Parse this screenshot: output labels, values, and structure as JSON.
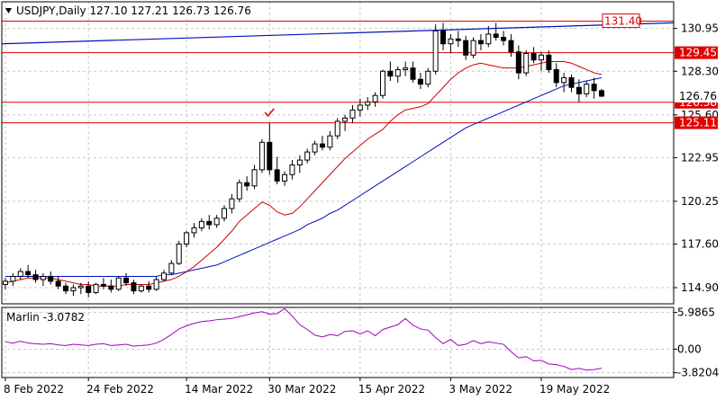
{
  "header": {
    "symbol_line": "USDJPY,Daily  127.10 127.21 126.73 126.76",
    "menu_icon": "triangle-down-icon"
  },
  "chart_data": [
    {
      "type": "candlestick",
      "title": "USDJPY,Daily",
      "ohlc_last": {
        "open": 127.1,
        "high": 127.21,
        "low": 126.73,
        "close": 126.76
      },
      "x_ticks": [
        "8 Feb 2022",
        "24 Feb 2022",
        "14 Mar 2022",
        "30 Mar 2022",
        "15 Apr 2022",
        "3 May 2022",
        "19 May 2022"
      ],
      "y_ticks": [
        130.95,
        128.3,
        125.6,
        122.95,
        120.25,
        117.6,
        114.9
      ],
      "ylim": [
        113.9,
        132.6
      ],
      "grid": true,
      "horizontal_levels": [
        {
          "value": 131.4,
          "label": "131.40",
          "color": "#e00000",
          "label_style": "outlined"
        },
        {
          "value": 129.45,
          "label": "129.45",
          "color": "#e00000",
          "label_style": "filled"
        },
        {
          "value": 126.38,
          "label": "126.38",
          "color": "#e00000",
          "label_style": "filled"
        },
        {
          "value": 125.11,
          "label": "125.11",
          "color": "#e00000",
          "label_style": "filled"
        }
      ],
      "price_label": {
        "value": 126.76,
        "label": "126.76"
      },
      "candles": [
        [
          115.1,
          115.5,
          114.8,
          115.3
        ],
        [
          115.3,
          115.8,
          115.0,
          115.6
        ],
        [
          115.6,
          116.1,
          115.4,
          115.9
        ],
        [
          115.9,
          116.3,
          115.5,
          115.7
        ],
        [
          115.7,
          116.0,
          115.2,
          115.4
        ],
        [
          115.4,
          115.8,
          115.0,
          115.6
        ],
        [
          115.6,
          115.9,
          115.1,
          115.3
        ],
        [
          115.3,
          115.6,
          114.8,
          115.0
        ],
        [
          115.0,
          115.2,
          114.5,
          114.7
        ],
        [
          114.7,
          115.1,
          114.4,
          114.9
        ],
        [
          114.9,
          115.2,
          114.5,
          115.0
        ],
        [
          115.0,
          115.3,
          114.3,
          114.6
        ],
        [
          114.6,
          115.2,
          114.5,
          115.1
        ],
        [
          115.1,
          115.5,
          114.8,
          115.0
        ],
        [
          115.0,
          115.4,
          114.6,
          114.8
        ],
        [
          114.8,
          115.6,
          114.7,
          115.5
        ],
        [
          115.5,
          115.8,
          115.0,
          115.2
        ],
        [
          115.2,
          115.4,
          114.5,
          114.7
        ],
        [
          114.7,
          115.1,
          114.6,
          115.0
        ],
        [
          115.0,
          115.3,
          114.6,
          114.8
        ],
        [
          114.8,
          115.6,
          114.7,
          115.4
        ],
        [
          115.4,
          116.0,
          115.3,
          115.8
        ],
        [
          115.8,
          116.6,
          115.7,
          116.4
        ],
        [
          116.4,
          117.8,
          116.3,
          117.6
        ],
        [
          117.6,
          118.4,
          117.4,
          118.3
        ],
        [
          118.3,
          118.9,
          118.0,
          118.6
        ],
        [
          118.6,
          119.2,
          118.4,
          119.0
        ],
        [
          119.0,
          119.4,
          118.5,
          118.8
        ],
        [
          118.8,
          119.4,
          118.6,
          119.2
        ],
        [
          119.2,
          120.0,
          119.0,
          119.8
        ],
        [
          119.8,
          120.7,
          119.5,
          120.4
        ],
        [
          120.4,
          121.6,
          120.2,
          121.4
        ],
        [
          121.4,
          121.8,
          120.9,
          121.2
        ],
        [
          121.2,
          122.5,
          121.0,
          122.2
        ],
        [
          122.2,
          124.1,
          122.0,
          123.9
        ],
        [
          123.9,
          125.1,
          121.9,
          122.2
        ],
        [
          122.2,
          123.0,
          121.3,
          121.5
        ],
        [
          121.5,
          122.1,
          121.2,
          121.9
        ],
        [
          121.9,
          122.8,
          121.6,
          122.5
        ],
        [
          122.5,
          123.1,
          122.0,
          122.8
        ],
        [
          122.8,
          123.5,
          122.6,
          123.3
        ],
        [
          123.3,
          124.0,
          123.1,
          123.8
        ],
        [
          123.8,
          124.3,
          123.4,
          123.6
        ],
        [
          123.6,
          124.6,
          123.4,
          124.3
        ],
        [
          124.3,
          125.4,
          124.1,
          125.2
        ],
        [
          125.2,
          125.6,
          124.6,
          125.4
        ],
        [
          125.4,
          126.2,
          125.1,
          125.9
        ],
        [
          125.9,
          126.6,
          125.5,
          126.2
        ],
        [
          126.2,
          126.7,
          125.9,
          126.4
        ],
        [
          126.4,
          127.0,
          126.1,
          126.8
        ],
        [
          126.8,
          128.4,
          126.6,
          128.3
        ],
        [
          128.3,
          128.9,
          127.7,
          128.0
        ],
        [
          128.0,
          128.6,
          127.6,
          128.4
        ],
        [
          128.4,
          128.9,
          128.0,
          128.5
        ],
        [
          128.5,
          128.9,
          127.6,
          127.8
        ],
        [
          127.8,
          128.2,
          127.2,
          127.5
        ],
        [
          127.5,
          128.5,
          127.3,
          128.3
        ],
        [
          128.3,
          131.2,
          128.1,
          130.8
        ],
        [
          130.8,
          131.3,
          129.6,
          130.0
        ],
        [
          130.0,
          130.6,
          129.4,
          130.3
        ],
        [
          130.3,
          130.8,
          129.8,
          130.2
        ],
        [
          130.2,
          130.5,
          129.0,
          129.3
        ],
        [
          129.3,
          130.4,
          129.1,
          130.2
        ],
        [
          130.2,
          130.6,
          129.6,
          130.0
        ],
        [
          130.0,
          131.1,
          129.8,
          130.6
        ],
        [
          130.6,
          131.3,
          130.2,
          130.4
        ],
        [
          130.4,
          130.8,
          129.9,
          130.2
        ],
        [
          130.2,
          130.6,
          129.2,
          129.5
        ],
        [
          129.5,
          129.9,
          127.8,
          128.2
        ],
        [
          128.2,
          129.6,
          128.0,
          129.4
        ],
        [
          129.4,
          129.8,
          128.8,
          129.0
        ],
        [
          129.0,
          129.5,
          128.3,
          129.3
        ],
        [
          129.3,
          129.6,
          128.2,
          128.4
        ],
        [
          128.4,
          128.8,
          127.3,
          127.6
        ],
        [
          127.6,
          128.2,
          127.0,
          127.9
        ],
        [
          127.9,
          128.1,
          127.0,
          127.3
        ],
        [
          127.3,
          127.8,
          126.4,
          126.9
        ],
        [
          126.9,
          127.7,
          126.7,
          127.5
        ],
        [
          127.5,
          127.9,
          126.6,
          127.1
        ],
        [
          127.1,
          127.2,
          126.7,
          126.76
        ]
      ],
      "series": [
        {
          "kind": "ma",
          "color": "#d00000",
          "values": [
            115.2,
            115.3,
            115.4,
            115.5,
            115.5,
            115.5,
            115.5,
            115.4,
            115.3,
            115.2,
            115.1,
            115.1,
            115.0,
            115.0,
            115.0,
            115.0,
            115.1,
            115.1,
            115.1,
            115.1,
            115.2,
            115.3,
            115.4,
            115.6,
            115.9,
            116.2,
            116.6,
            117.0,
            117.4,
            117.9,
            118.4,
            119.0,
            119.4,
            119.8,
            120.2,
            120.0,
            119.6,
            119.4,
            119.5,
            119.9,
            120.4,
            120.9,
            121.4,
            121.9,
            122.4,
            122.9,
            123.3,
            123.7,
            124.1,
            124.4,
            124.7,
            125.2,
            125.6,
            125.9,
            126.0,
            126.1,
            126.3,
            126.8,
            127.3,
            127.8,
            128.2,
            128.5,
            128.7,
            128.8,
            128.7,
            128.6,
            128.5,
            128.5,
            128.5,
            128.6,
            128.7,
            128.8,
            128.9,
            128.9,
            128.9,
            128.8,
            128.6,
            128.4,
            128.2,
            128.1
          ]
        },
        {
          "kind": "ma",
          "color": "#0010c0",
          "values": [
            115.6,
            115.6,
            115.6,
            115.6,
            115.6,
            115.6,
            115.6,
            115.6,
            115.6,
            115.6,
            115.6,
            115.6,
            115.6,
            115.6,
            115.6,
            115.6,
            115.6,
            115.6,
            115.6,
            115.6,
            115.6,
            115.7,
            115.7,
            115.8,
            115.9,
            116.0,
            116.1,
            116.2,
            116.3,
            116.5,
            116.7,
            116.9,
            117.1,
            117.3,
            117.5,
            117.7,
            117.9,
            118.1,
            118.3,
            118.5,
            118.8,
            119.0,
            119.2,
            119.5,
            119.7,
            120.0,
            120.3,
            120.6,
            120.9,
            121.2,
            121.5,
            121.8,
            122.1,
            122.4,
            122.7,
            123.0,
            123.3,
            123.6,
            123.9,
            124.2,
            124.5,
            124.8,
            125.0,
            125.2,
            125.4,
            125.6,
            125.8,
            126.0,
            126.2,
            126.4,
            126.6,
            126.8,
            127.0,
            127.2,
            127.4,
            127.5,
            127.6,
            127.7,
            127.8,
            127.9
          ]
        },
        {
          "kind": "trendline",
          "color": "#0010c0",
          "from": [
            0,
            130.0
          ],
          "to": [
            79,
            131.3
          ]
        }
      ],
      "annotations": [
        {
          "type": "checkmark",
          "bar": 35,
          "value": 125.7,
          "color": "#d00000"
        }
      ]
    },
    {
      "type": "line",
      "title": "Marlin -3.0782",
      "y_ticks": [
        5.9865,
        0.0,
        -3.8204
      ],
      "ylim": [
        -4.6,
        6.8
      ],
      "grid": true,
      "series": [
        {
          "name": "Marlin",
          "color": "#a000c0",
          "values": [
            1.2,
            1.0,
            1.3,
            1.0,
            0.9,
            0.8,
            0.9,
            0.7,
            0.6,
            0.8,
            0.7,
            0.6,
            0.8,
            0.9,
            0.6,
            0.7,
            0.8,
            0.5,
            0.6,
            0.7,
            1.0,
            1.6,
            2.4,
            3.3,
            3.8,
            4.2,
            4.5,
            4.6,
            4.8,
            4.9,
            5.0,
            5.3,
            5.6,
            5.9,
            6.1,
            5.7,
            5.8,
            6.6,
            5.4,
            4.0,
            3.2,
            2.3,
            2.0,
            2.4,
            2.2,
            2.9,
            3.0,
            2.5,
            3.0,
            2.2,
            3.2,
            3.6,
            4.0,
            5.0,
            3.9,
            3.3,
            3.1,
            1.9,
            0.9,
            1.6,
            0.6,
            0.8,
            1.4,
            0.9,
            1.2,
            1.0,
            0.8,
            -0.4,
            -1.4,
            -1.2,
            -1.9,
            -1.8,
            -2.4,
            -2.5,
            -2.8,
            -3.3,
            -3.1,
            -3.4,
            -3.3,
            -3.0782
          ]
        }
      ]
    }
  ]
}
